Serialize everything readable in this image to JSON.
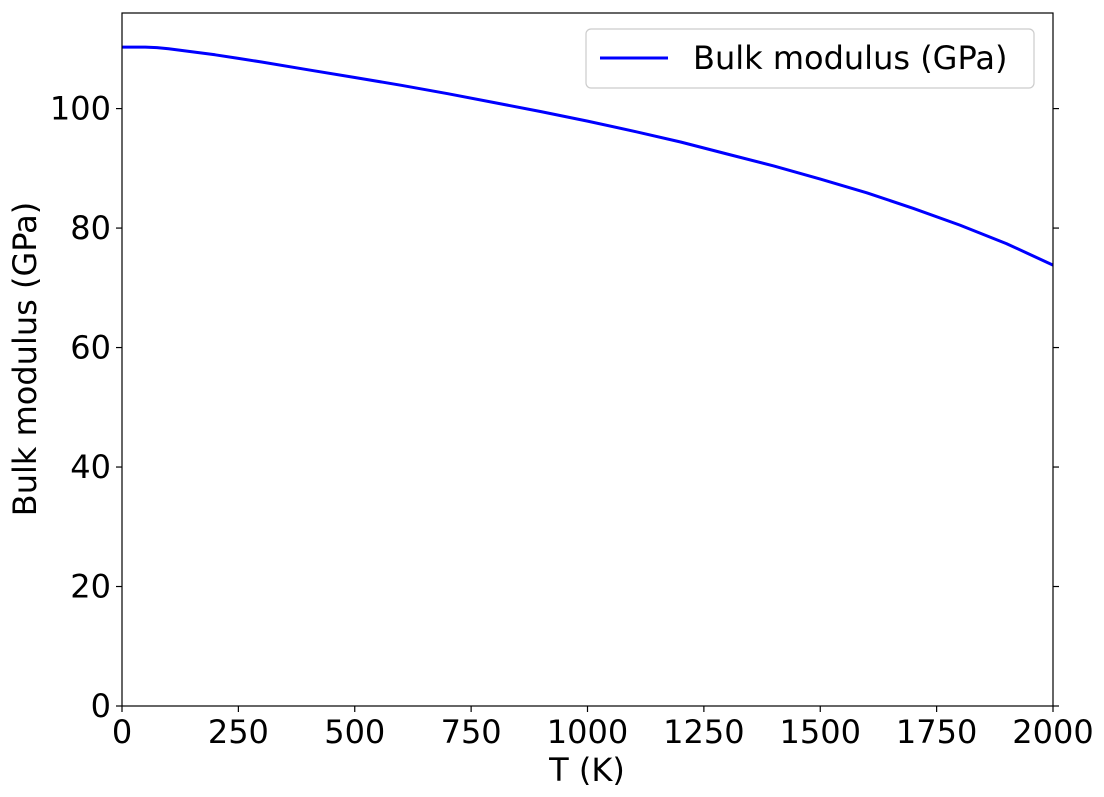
{
  "chart_data": {
    "type": "line",
    "title": "",
    "xlabel": "T (K)",
    "ylabel": "Bulk modulus (GPa)",
    "xlim": [
      0,
      2000
    ],
    "ylim": [
      0,
      116
    ],
    "xticks": [
      0,
      250,
      500,
      750,
      1000,
      1250,
      1500,
      1750,
      2000
    ],
    "yticks": [
      0,
      20,
      40,
      60,
      80,
      100
    ],
    "grid": false,
    "legend": {
      "placement": "top-right"
    },
    "series": [
      {
        "name": "Bulk modulus (GPa)",
        "color": "#0000ff",
        "x": [
          0,
          25,
          50,
          75,
          100,
          150,
          200,
          250,
          300,
          400,
          500,
          600,
          700,
          800,
          900,
          1000,
          1100,
          1200,
          1300,
          1400,
          1500,
          1600,
          1700,
          1800,
          1900,
          2000
        ],
        "y": [
          110.3,
          110.3,
          110.3,
          110.2,
          110.0,
          109.5,
          109.0,
          108.4,
          107.8,
          106.5,
          105.2,
          103.9,
          102.5,
          101.0,
          99.5,
          97.9,
          96.2,
          94.4,
          92.4,
          90.4,
          88.2,
          85.9,
          83.3,
          80.5,
          77.4,
          73.8
        ]
      }
    ]
  }
}
